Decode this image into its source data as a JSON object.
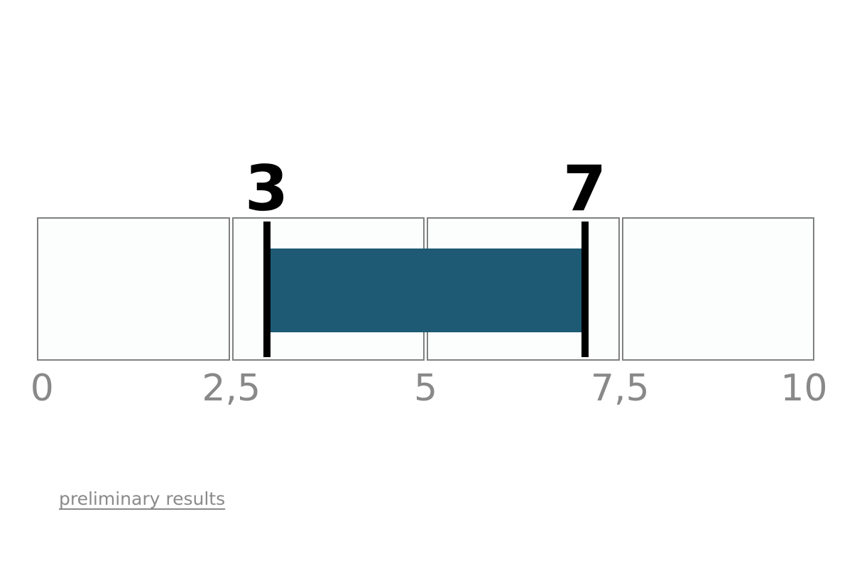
{
  "page": {
    "background": "#FFFFFF"
  },
  "chart_data": {
    "type": "bar",
    "subtype": "horizontal-range-gauge",
    "title": "",
    "xlabel": "",
    "ylabel": "",
    "scale": {
      "min": 0,
      "max": 10,
      "tick_values": [
        0,
        2.5,
        5,
        7.5,
        10
      ],
      "tick_labels": [
        "0",
        "2,5",
        "5",
        "7,5",
        "10"
      ],
      "segment_count": 4,
      "grid": false
    },
    "range": {
      "start": 3,
      "end": 7,
      "start_label": "3",
      "end_label": "7"
    },
    "colors": {
      "bar": "#1E5A73",
      "segment_fill": "#FBFEFD",
      "segment_border": "#808080",
      "marker": "#000000",
      "tick_label": "#898989"
    }
  },
  "footer": {
    "link_label": "preliminary results",
    "link_color": "#8A8A8A"
  }
}
